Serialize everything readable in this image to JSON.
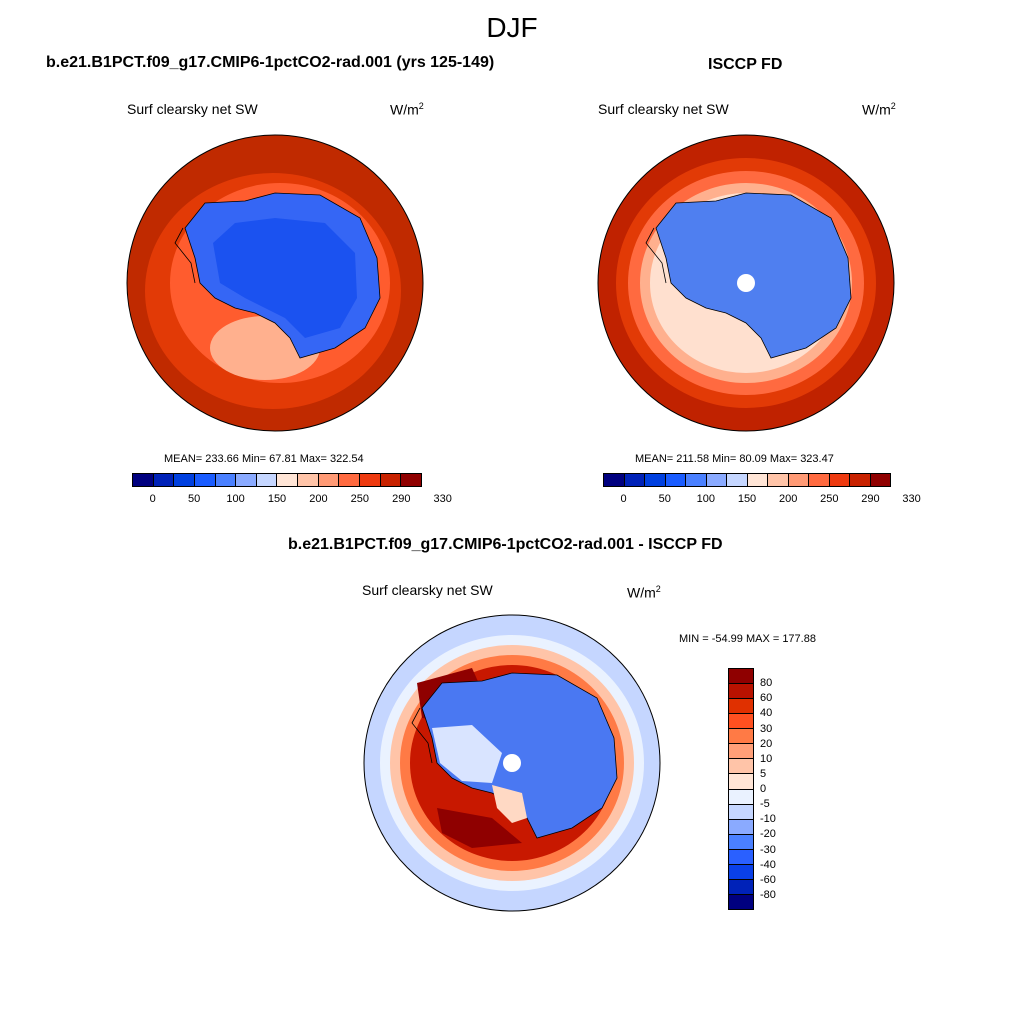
{
  "figure": {
    "season": "DJF"
  },
  "chart_data": [
    {
      "type": "heatmap",
      "title": "b.e21.B1PCT.f09_g17.CMIP6-1pctCO2-rad.001 (yrs 125-149)",
      "variable": "Surf clearsky net SW",
      "units": "W/m",
      "units_exp": "2",
      "projection": "south polar stereographic",
      "stats": {
        "mean": "233.66",
        "min": "67.81",
        "max": "322.54"
      },
      "stats_text": "MEAN= 233.66  Min=  67.81  Max= 322.54",
      "colorbar": {
        "colors": [
          "#00007f",
          "#0022b8",
          "#0040e0",
          "#1a5cff",
          "#4a80ff",
          "#8aaaff",
          "#c5d6ff",
          "#ffe5d6",
          "#ffc4a8",
          "#ff9a75",
          "#ff6a40",
          "#ee3a10",
          "#c82200",
          "#8f0000"
        ],
        "tick_labels": [
          "0",
          "50",
          "100",
          "150",
          "200",
          "250",
          "290",
          "330"
        ]
      }
    },
    {
      "type": "heatmap",
      "title": "ISCCP FD",
      "variable": "Surf clearsky net SW",
      "units": "W/m",
      "units_exp": "2",
      "projection": "south polar stereographic",
      "stats": {
        "mean": "211.58",
        "min": "80.09",
        "max": "323.47"
      },
      "stats_text": "MEAN= 211.58  Min=  80.09  Max= 323.47",
      "colorbar": {
        "colors": [
          "#00007f",
          "#0022b8",
          "#0040e0",
          "#1a5cff",
          "#4a80ff",
          "#8aaaff",
          "#c5d6ff",
          "#ffe5d6",
          "#ffc4a8",
          "#ff9a75",
          "#ff6a40",
          "#ee3a10",
          "#c82200",
          "#8f0000"
        ],
        "tick_labels": [
          "0",
          "50",
          "100",
          "150",
          "200",
          "250",
          "290",
          "330"
        ]
      }
    },
    {
      "type": "heatmap",
      "title": "b.e21.B1PCT.f09_g17.CMIP6-1pctCO2-rad.001 - ISCCP FD",
      "variable": "Surf clearsky net SW",
      "units": "W/m",
      "units_exp": "2",
      "projection": "south polar stereographic",
      "stats_text": "MIN = -54.99 MAX = 177.88",
      "colorbar": {
        "colors_top_to_bottom": [
          "#8f0000",
          "#b81200",
          "#e03000",
          "#ff5020",
          "#ff7a45",
          "#ff9f78",
          "#ffc4a8",
          "#ffe5d6",
          "#eaf2ff",
          "#c5d6ff",
          "#8aaaff",
          "#4a80ff",
          "#2a60ff",
          "#0a40e8",
          "#0022b8",
          "#00007f"
        ],
        "tick_labels_top_to_bottom": [
          "80",
          "60",
          "40",
          "30",
          "20",
          "10",
          "5",
          "0",
          "-5",
          "-10",
          "-20",
          "-30",
          "-40",
          "-60",
          "-80"
        ]
      }
    }
  ]
}
